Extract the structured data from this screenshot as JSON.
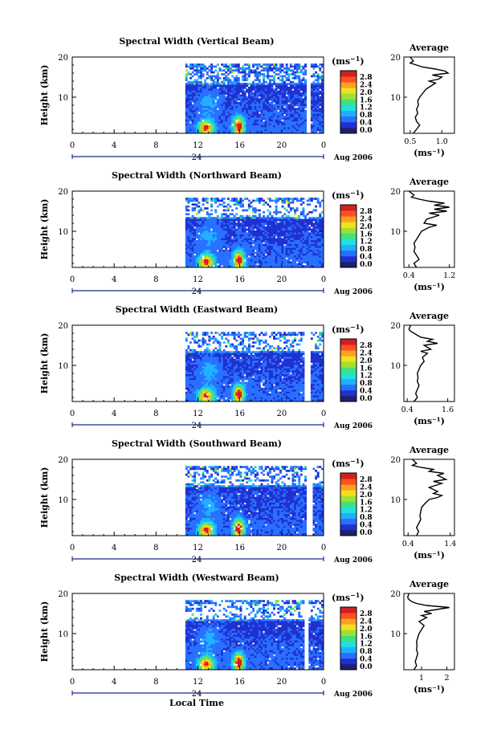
{
  "figure": {
    "xlabel": "Local Time",
    "unit_label": "(ms",
    "unit_sup": "−1",
    "unit_close": ")",
    "avg_title": "Average",
    "date_label": "Aug 2006"
  },
  "chart_data": [
    {
      "type": "heatmap",
      "title": "Spectral Width (Vertical Beam)",
      "ylabel": "Height (km)",
      "xlim": [
        0,
        24
      ],
      "ylim": [
        1,
        20
      ],
      "xticks": [
        "0",
        "4",
        "8",
        "12",
        "16",
        "20",
        "0"
      ],
      "yticks": [
        "10",
        "20"
      ],
      "day_marker": "24",
      "colorbar": {
        "ticks": [
          "0.0",
          "0.4",
          "0.8",
          "1.2",
          "1.6",
          "2.0",
          "2.4",
          "2.8"
        ],
        "colors": [
          "#20206a",
          "#2030d0",
          "#2870ff",
          "#20b0ff",
          "#20e0e0",
          "#40e080",
          "#a0e030",
          "#f0e020",
          "#ffa020",
          "#ff5020",
          "#d02020"
        ]
      },
      "data_start_hour": 10.8,
      "gap_hours": [
        22.3,
        22.7
      ],
      "average": {
        "xlim": [
          0.4,
          1.2
        ],
        "xticks": [
          "0.5",
          "1.0"
        ],
        "xlabel": "(ms⁻¹)",
        "profile": [
          [
            1,
            0.55
          ],
          [
            2,
            0.6
          ],
          [
            3,
            0.65
          ],
          [
            4,
            0.6
          ],
          [
            5,
            0.58
          ],
          [
            6,
            0.62
          ],
          [
            7,
            0.6
          ],
          [
            8,
            0.63
          ],
          [
            9,
            0.62
          ],
          [
            10,
            0.65
          ],
          [
            11,
            0.7
          ],
          [
            12,
            0.75
          ],
          [
            13,
            0.85
          ],
          [
            13.5,
            0.9
          ],
          [
            14,
            0.8
          ],
          [
            14.5,
            0.95
          ],
          [
            15,
            1.0
          ],
          [
            15.5,
            0.85
          ],
          [
            16,
            1.1
          ],
          [
            16.5,
            1.05
          ],
          [
            17,
            0.9
          ],
          [
            17.5,
            0.7
          ],
          [
            18,
            0.6
          ],
          [
            18.5,
            0.5
          ],
          [
            19,
            0.55
          ],
          [
            20,
            0.5
          ]
        ]
      }
    },
    {
      "type": "heatmap",
      "title": "Spectral Width (Northward Beam)",
      "ylabel": "Height (km)",
      "xlim": [
        0,
        24
      ],
      "ylim": [
        1,
        20
      ],
      "xticks": [
        "0",
        "4",
        "8",
        "12",
        "16",
        "20",
        "0"
      ],
      "yticks": [
        "10",
        "20"
      ],
      "day_marker": "24",
      "colorbar": {
        "ticks": [
          "0.0",
          "0.4",
          "0.8",
          "1.2",
          "1.6",
          "2.0",
          "2.4",
          "2.8"
        ],
        "colors": [
          "#20206a",
          "#2030d0",
          "#2870ff",
          "#20b0ff",
          "#20e0e0",
          "#40e080",
          "#a0e030",
          "#f0e020",
          "#ffa020",
          "#ff5020",
          "#d02020"
        ]
      },
      "data_start_hour": 10.8,
      "gap_hours": null,
      "average": {
        "xlim": [
          0.3,
          1.3
        ],
        "xticks": [
          "0.4",
          "1.2"
        ],
        "xlabel": "(ms⁻¹)",
        "profile": [
          [
            1,
            0.55
          ],
          [
            2,
            0.5
          ],
          [
            3,
            0.6
          ],
          [
            4,
            0.55
          ],
          [
            5,
            0.5
          ],
          [
            6,
            0.52
          ],
          [
            7,
            0.5
          ],
          [
            8,
            0.55
          ],
          [
            9,
            0.6
          ],
          [
            10,
            0.65
          ],
          [
            11,
            0.8
          ],
          [
            11.5,
            0.95
          ],
          [
            12,
            0.7
          ],
          [
            13,
            0.75
          ],
          [
            14,
            1.0
          ],
          [
            14.5,
            0.8
          ],
          [
            15,
            1.15
          ],
          [
            15.5,
            0.9
          ],
          [
            16,
            1.2
          ],
          [
            16.5,
            0.9
          ],
          [
            17,
            1.1
          ],
          [
            17.5,
            0.8
          ],
          [
            18,
            0.6
          ],
          [
            18.5,
            0.45
          ],
          [
            19,
            0.5
          ],
          [
            20,
            0.4
          ]
        ]
      }
    },
    {
      "type": "heatmap",
      "title": "Spectral Width (Eastward Beam)",
      "ylabel": "Height (km)",
      "xlim": [
        0,
        24
      ],
      "ylim": [
        1,
        20
      ],
      "xticks": [
        "0",
        "4",
        "8",
        "12",
        "16",
        "20",
        "0"
      ],
      "yticks": [
        "10",
        "20"
      ],
      "day_marker": "24",
      "colorbar": {
        "ticks": [
          "0.0",
          "0.4",
          "0.8",
          "1.2",
          "1.6",
          "2.0",
          "2.4",
          "2.8"
        ],
        "colors": [
          "#20206a",
          "#2030d0",
          "#2870ff",
          "#20b0ff",
          "#20e0e0",
          "#40e080",
          "#a0e030",
          "#f0e020",
          "#ffa020",
          "#ff5020",
          "#d02020"
        ]
      },
      "data_start_hour": 10.8,
      "gap_hours": [
        22.0,
        22.6
      ],
      "average": {
        "xlim": [
          0.3,
          1.8
        ],
        "xticks": [
          "0.4",
          "1.6"
        ],
        "xlabel": "(ms⁻¹)",
        "profile": [
          [
            1,
            0.6
          ],
          [
            2,
            0.7
          ],
          [
            3,
            0.65
          ],
          [
            4,
            0.7
          ],
          [
            5,
            0.75
          ],
          [
            6,
            0.7
          ],
          [
            7,
            0.72
          ],
          [
            8,
            0.7
          ],
          [
            9,
            0.75
          ],
          [
            10,
            0.8
          ],
          [
            11,
            0.9
          ],
          [
            12,
            0.85
          ],
          [
            13,
            1.0
          ],
          [
            13.5,
            0.8
          ],
          [
            14,
            1.1
          ],
          [
            15,
            0.9
          ],
          [
            15.5,
            1.3
          ],
          [
            16,
            1.0
          ],
          [
            16.5,
            1.15
          ],
          [
            17,
            0.8
          ],
          [
            18,
            0.6
          ],
          [
            18.5,
            0.5
          ],
          [
            19,
            0.45
          ],
          [
            20,
            0.5
          ]
        ]
      }
    },
    {
      "type": "heatmap",
      "title": "Spectral Width (Southward Beam)",
      "ylabel": "Height (km)",
      "xlim": [
        0,
        24
      ],
      "ylim": [
        1,
        20
      ],
      "xticks": [
        "0",
        "4",
        "8",
        "12",
        "16",
        "20",
        "0"
      ],
      "yticks": [
        "10",
        "20"
      ],
      "day_marker": "24",
      "colorbar": {
        "ticks": [
          "0.0",
          "0.4",
          "0.8",
          "1.2",
          "1.6",
          "2.0",
          "2.4",
          "2.8"
        ],
        "colors": [
          "#20206a",
          "#2030d0",
          "#2870ff",
          "#20b0ff",
          "#20e0e0",
          "#40e080",
          "#a0e030",
          "#f0e020",
          "#ffa020",
          "#ff5020",
          "#d02020"
        ]
      },
      "data_start_hour": 10.8,
      "gap_hours": [
        22.3,
        22.8
      ],
      "average": {
        "xlim": [
          0.3,
          1.5
        ],
        "xticks": [
          "0.4",
          "1.4"
        ],
        "xlabel": "(ms⁻¹)",
        "profile": [
          [
            1,
            0.6
          ],
          [
            2,
            0.65
          ],
          [
            3,
            0.6
          ],
          [
            4,
            0.65
          ],
          [
            5,
            0.7
          ],
          [
            6,
            0.68
          ],
          [
            7,
            0.7
          ],
          [
            8,
            0.72
          ],
          [
            9,
            0.8
          ],
          [
            10,
            0.9
          ],
          [
            10.5,
            1.1
          ],
          [
            11,
            1.2
          ],
          [
            11.5,
            1.0
          ],
          [
            12,
            1.1
          ],
          [
            13,
            0.9
          ],
          [
            14,
            1.2
          ],
          [
            14.5,
            1.0
          ],
          [
            15,
            1.3
          ],
          [
            16,
            1.1
          ],
          [
            16.5,
            1.25
          ],
          [
            17,
            0.9
          ],
          [
            17.5,
            1.0
          ],
          [
            18,
            0.7
          ],
          [
            18.5,
            0.5
          ],
          [
            19,
            0.6
          ],
          [
            20,
            0.5
          ]
        ]
      }
    },
    {
      "type": "heatmap",
      "title": "Spectral Width (Westward Beam)",
      "ylabel": "Height (km)",
      "xlim": [
        0,
        24
      ],
      "ylim": [
        1,
        20
      ],
      "xticks": [
        "0",
        "4",
        "8",
        "12",
        "16",
        "20",
        "0"
      ],
      "yticks": [
        "10",
        "20"
      ],
      "day_marker": "24",
      "colorbar": {
        "ticks": [
          "0.0",
          "0.4",
          "0.8",
          "1.2",
          "1.6",
          "2.0",
          "2.4",
          "2.8"
        ],
        "colors": [
          "#20206a",
          "#2030d0",
          "#2870ff",
          "#20b0ff",
          "#20e0e0",
          "#40e080",
          "#a0e030",
          "#f0e020",
          "#ffa020",
          "#ff5020",
          "#d02020"
        ]
      },
      "data_start_hour": 10.8,
      "gap_hours": [
        22.0,
        22.5
      ],
      "average": {
        "xlim": [
          0.3,
          2.3
        ],
        "xticks": [
          "1",
          "2"
        ],
        "xlabel": "(ms⁻¹)",
        "profile": [
          [
            1,
            0.7
          ],
          [
            2,
            0.8
          ],
          [
            3,
            0.75
          ],
          [
            4,
            0.8
          ],
          [
            5,
            0.85
          ],
          [
            6,
            0.8
          ],
          [
            7,
            0.82
          ],
          [
            8,
            0.8
          ],
          [
            9,
            0.85
          ],
          [
            10,
            0.9
          ],
          [
            11,
            1.0
          ],
          [
            12,
            1.1
          ],
          [
            13,
            0.9
          ],
          [
            14,
            1.2
          ],
          [
            14.5,
            1.0
          ],
          [
            15,
            1.4
          ],
          [
            15.5,
            1.1
          ],
          [
            16,
            1.6
          ],
          [
            16.5,
            2.1
          ],
          [
            17,
            1.2
          ],
          [
            17.5,
            0.8
          ],
          [
            18,
            0.6
          ],
          [
            18.5,
            0.5
          ],
          [
            19,
            0.45
          ],
          [
            20,
            0.5
          ]
        ]
      }
    }
  ]
}
